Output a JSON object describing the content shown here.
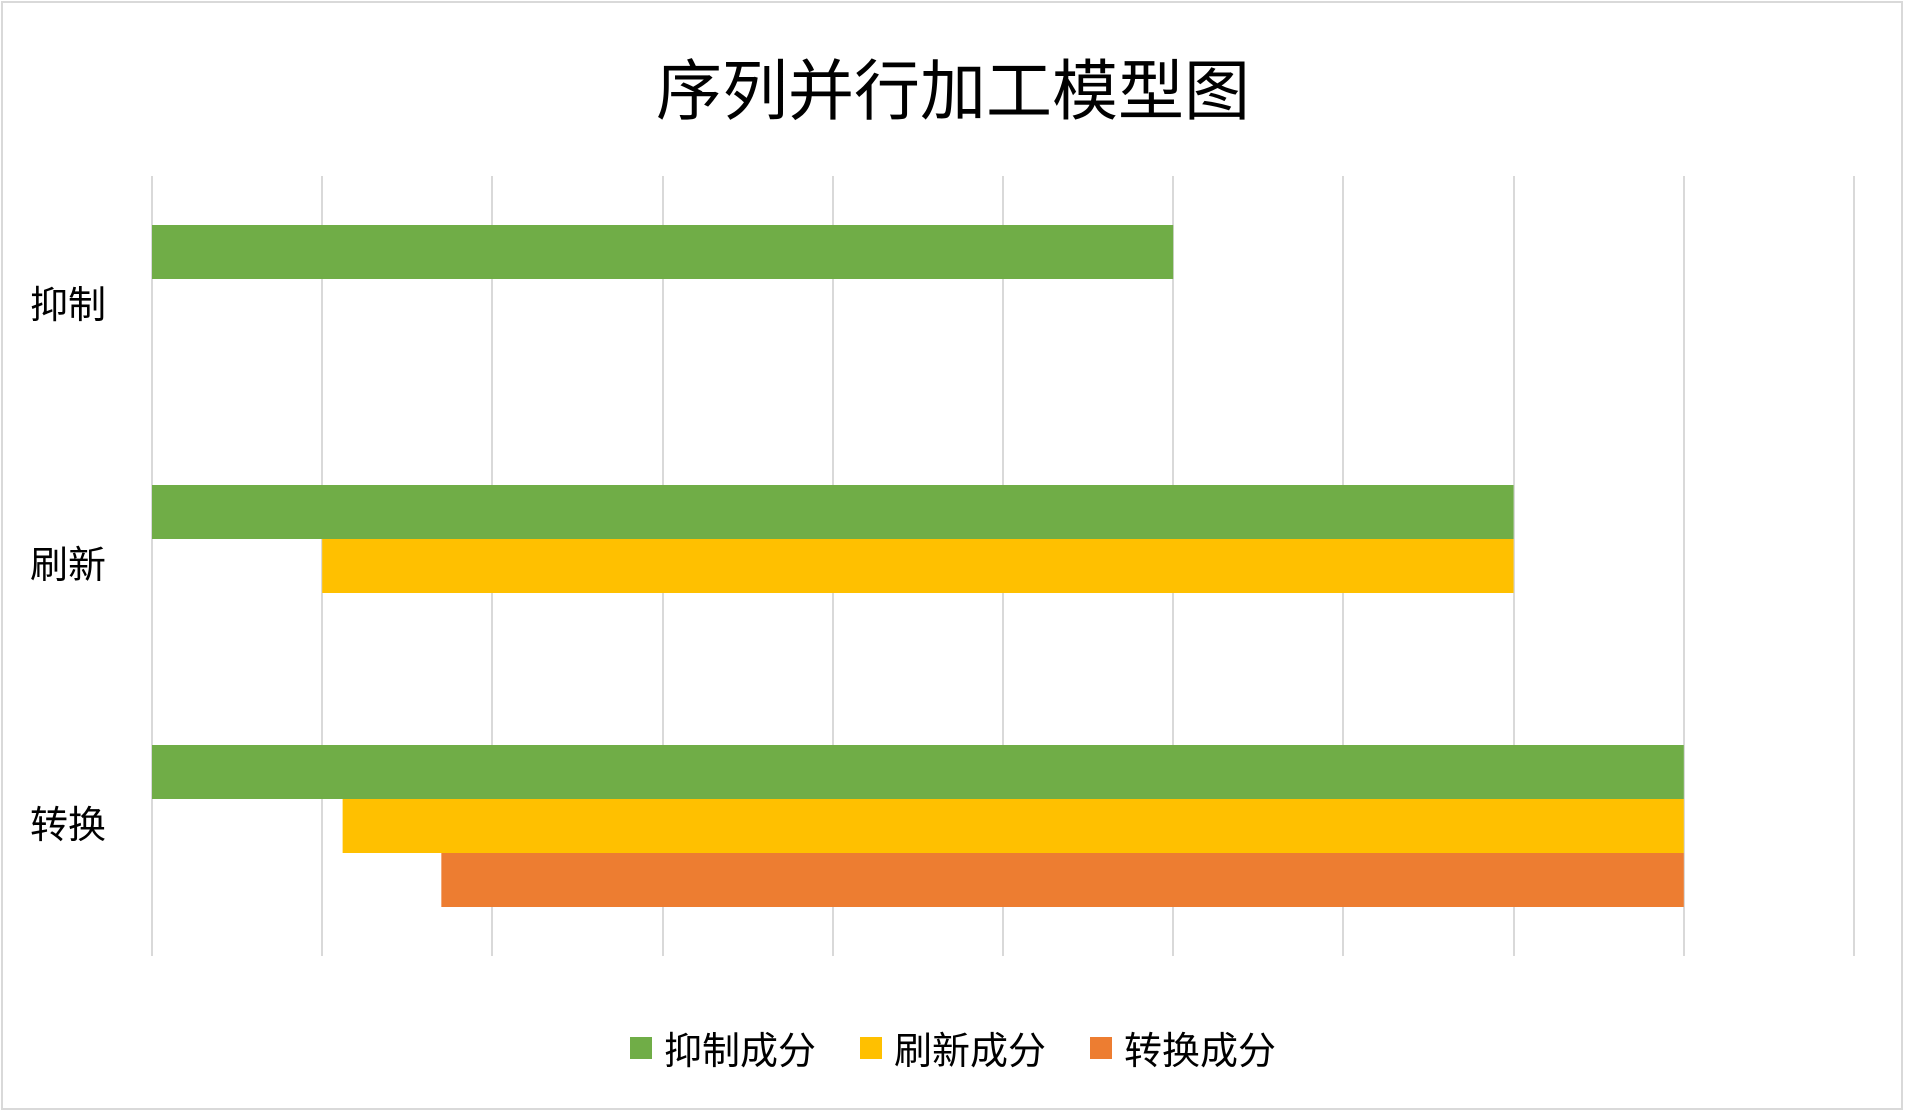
{
  "chart_data": {
    "type": "bar",
    "orientation": "horizontal",
    "stacked": false,
    "floating": true,
    "title": "序列并行加工模型图",
    "categories": [
      "抑制",
      "刷新",
      "转换"
    ],
    "series": [
      {
        "name": "抑制成分",
        "color": "#70ad47",
        "start": [
          0,
          0,
          0
        ],
        "end": [
          6,
          8,
          9
        ]
      },
      {
        "name": "刷新成分",
        "color": "#ffc000",
        "start": [
          null,
          1,
          1.12
        ],
        "end": [
          null,
          8,
          9
        ]
      },
      {
        "name": "转换成分",
        "color": "#ed7d31",
        "start": [
          null,
          null,
          1.7
        ],
        "end": [
          null,
          null,
          9
        ]
      }
    ],
    "xlim": [
      0,
      10
    ],
    "major_unit": 1,
    "grid": true,
    "tick_labels_shown": false,
    "legend_position": "bottom"
  }
}
